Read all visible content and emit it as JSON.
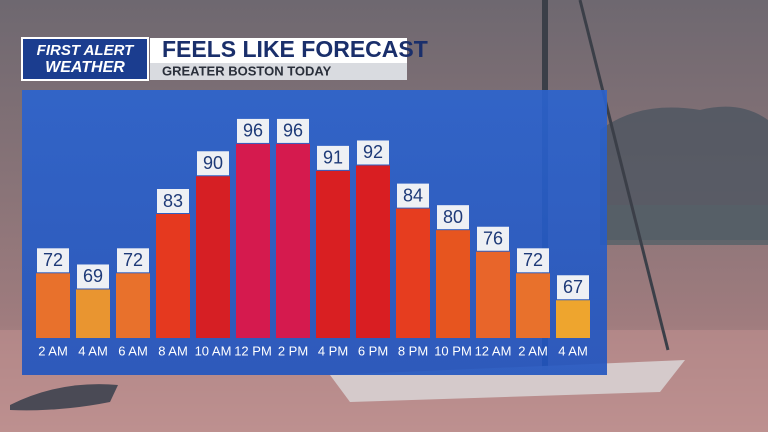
{
  "logo": [
    "FIRST ALERT",
    "WEATHER"
  ],
  "chart_data": {
    "type": "bar",
    "title": "FEELS LIKE FORECAST",
    "subtitle": "GREATER BOSTON TODAY",
    "categories": [
      "2 AM",
      "4 AM",
      "6 AM",
      "8 AM",
      "10 AM",
      "12 PM",
      "2 PM",
      "4 PM",
      "6 PM",
      "8 PM",
      "10 PM",
      "12 AM",
      "2 AM",
      "4 AM"
    ],
    "values": [
      72,
      69,
      72,
      83,
      90,
      96,
      96,
      91,
      92,
      84,
      80,
      76,
      72,
      67
    ],
    "colors": [
      "#e8712c",
      "#e99530",
      "#e8712c",
      "#e5391f",
      "#d61f24",
      "#d51a4e",
      "#d51a4e",
      "#d91f22",
      "#d91e22",
      "#e63d1f",
      "#e7551f",
      "#e8652a",
      "#e8712c",
      "#eea52e"
    ],
    "ylim": [
      60,
      106
    ]
  }
}
